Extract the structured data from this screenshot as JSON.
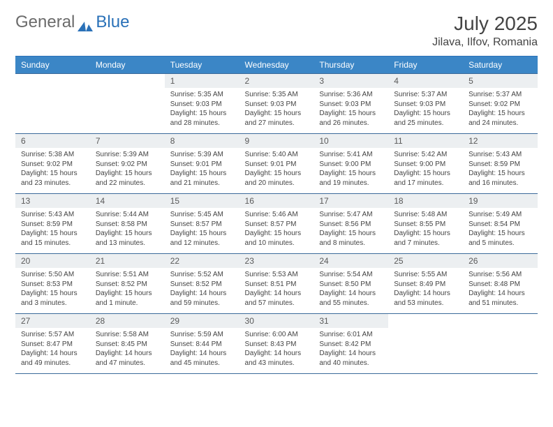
{
  "brand": {
    "part1": "General",
    "part2": "Blue"
  },
  "header": {
    "month": "July 2025",
    "location": "Jilava, Ilfov, Romania"
  },
  "colors": {
    "header_bg": "#3b86c6",
    "header_text": "#ffffff",
    "daynum_bg": "#eceff1",
    "border": "#3b6a9a",
    "brand_gray": "#6b6b6b",
    "brand_blue": "#2a71b8"
  },
  "typography": {
    "month_fontsize": 28,
    "location_fontsize": 16,
    "day_header_fontsize": 12,
    "daynum_fontsize": 12,
    "body_fontsize": 10
  },
  "weekdays": [
    "Sunday",
    "Monday",
    "Tuesday",
    "Wednesday",
    "Thursday",
    "Friday",
    "Saturday"
  ],
  "weeks": [
    [
      {
        "n": "",
        "sr": "",
        "ss": "",
        "dl": ""
      },
      {
        "n": "",
        "sr": "",
        "ss": "",
        "dl": ""
      },
      {
        "n": "1",
        "sr": "5:35 AM",
        "ss": "9:03 PM",
        "dl": "15 hours and 28 minutes."
      },
      {
        "n": "2",
        "sr": "5:35 AM",
        "ss": "9:03 PM",
        "dl": "15 hours and 27 minutes."
      },
      {
        "n": "3",
        "sr": "5:36 AM",
        "ss": "9:03 PM",
        "dl": "15 hours and 26 minutes."
      },
      {
        "n": "4",
        "sr": "5:37 AM",
        "ss": "9:03 PM",
        "dl": "15 hours and 25 minutes."
      },
      {
        "n": "5",
        "sr": "5:37 AM",
        "ss": "9:02 PM",
        "dl": "15 hours and 24 minutes."
      }
    ],
    [
      {
        "n": "6",
        "sr": "5:38 AM",
        "ss": "9:02 PM",
        "dl": "15 hours and 23 minutes."
      },
      {
        "n": "7",
        "sr": "5:39 AM",
        "ss": "9:02 PM",
        "dl": "15 hours and 22 minutes."
      },
      {
        "n": "8",
        "sr": "5:39 AM",
        "ss": "9:01 PM",
        "dl": "15 hours and 21 minutes."
      },
      {
        "n": "9",
        "sr": "5:40 AM",
        "ss": "9:01 PM",
        "dl": "15 hours and 20 minutes."
      },
      {
        "n": "10",
        "sr": "5:41 AM",
        "ss": "9:00 PM",
        "dl": "15 hours and 19 minutes."
      },
      {
        "n": "11",
        "sr": "5:42 AM",
        "ss": "9:00 PM",
        "dl": "15 hours and 17 minutes."
      },
      {
        "n": "12",
        "sr": "5:43 AM",
        "ss": "8:59 PM",
        "dl": "15 hours and 16 minutes."
      }
    ],
    [
      {
        "n": "13",
        "sr": "5:43 AM",
        "ss": "8:59 PM",
        "dl": "15 hours and 15 minutes."
      },
      {
        "n": "14",
        "sr": "5:44 AM",
        "ss": "8:58 PM",
        "dl": "15 hours and 13 minutes."
      },
      {
        "n": "15",
        "sr": "5:45 AM",
        "ss": "8:57 PM",
        "dl": "15 hours and 12 minutes."
      },
      {
        "n": "16",
        "sr": "5:46 AM",
        "ss": "8:57 PM",
        "dl": "15 hours and 10 minutes."
      },
      {
        "n": "17",
        "sr": "5:47 AM",
        "ss": "8:56 PM",
        "dl": "15 hours and 8 minutes."
      },
      {
        "n": "18",
        "sr": "5:48 AM",
        "ss": "8:55 PM",
        "dl": "15 hours and 7 minutes."
      },
      {
        "n": "19",
        "sr": "5:49 AM",
        "ss": "8:54 PM",
        "dl": "15 hours and 5 minutes."
      }
    ],
    [
      {
        "n": "20",
        "sr": "5:50 AM",
        "ss": "8:53 PM",
        "dl": "15 hours and 3 minutes."
      },
      {
        "n": "21",
        "sr": "5:51 AM",
        "ss": "8:52 PM",
        "dl": "15 hours and 1 minute."
      },
      {
        "n": "22",
        "sr": "5:52 AM",
        "ss": "8:52 PM",
        "dl": "14 hours and 59 minutes."
      },
      {
        "n": "23",
        "sr": "5:53 AM",
        "ss": "8:51 PM",
        "dl": "14 hours and 57 minutes."
      },
      {
        "n": "24",
        "sr": "5:54 AM",
        "ss": "8:50 PM",
        "dl": "14 hours and 55 minutes."
      },
      {
        "n": "25",
        "sr": "5:55 AM",
        "ss": "8:49 PM",
        "dl": "14 hours and 53 minutes."
      },
      {
        "n": "26",
        "sr": "5:56 AM",
        "ss": "8:48 PM",
        "dl": "14 hours and 51 minutes."
      }
    ],
    [
      {
        "n": "27",
        "sr": "5:57 AM",
        "ss": "8:47 PM",
        "dl": "14 hours and 49 minutes."
      },
      {
        "n": "28",
        "sr": "5:58 AM",
        "ss": "8:45 PM",
        "dl": "14 hours and 47 minutes."
      },
      {
        "n": "29",
        "sr": "5:59 AM",
        "ss": "8:44 PM",
        "dl": "14 hours and 45 minutes."
      },
      {
        "n": "30",
        "sr": "6:00 AM",
        "ss": "8:43 PM",
        "dl": "14 hours and 43 minutes."
      },
      {
        "n": "31",
        "sr": "6:01 AM",
        "ss": "8:42 PM",
        "dl": "14 hours and 40 minutes."
      },
      {
        "n": "",
        "sr": "",
        "ss": "",
        "dl": ""
      },
      {
        "n": "",
        "sr": "",
        "ss": "",
        "dl": ""
      }
    ]
  ],
  "labels": {
    "sunrise": "Sunrise:",
    "sunset": "Sunset:",
    "daylight": "Daylight:"
  }
}
